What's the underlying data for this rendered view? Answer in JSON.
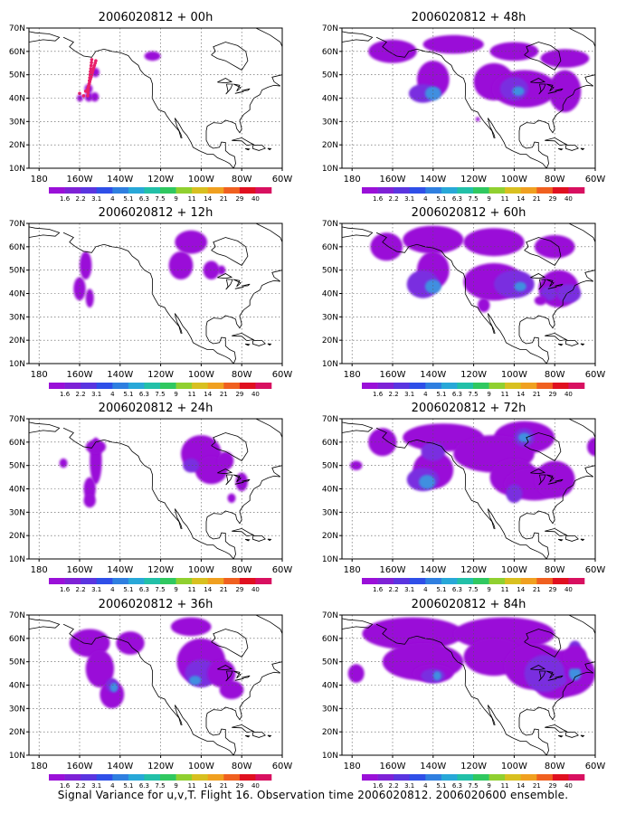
{
  "caption": "Signal Variance for u,v,T. Flight 16. Observation time 2006020812. 2006020600 ensemble.",
  "lat_labels": [
    "10N",
    "20N",
    "30N",
    "40N",
    "50N",
    "60N",
    "70N"
  ],
  "lon_labels": [
    "180",
    "160W",
    "140W",
    "120W",
    "100W",
    "80W",
    "60W"
  ],
  "legend_labels": [
    "1.6",
    "2.2",
    "3.1",
    "4",
    "5.1",
    "6.3",
    "7.5",
    "9",
    "11",
    "14",
    "21",
    "29",
    "40"
  ],
  "colors": {
    "scale": [
      "#9a10d8",
      "#7e22d6",
      "#5a35e0",
      "#2f4fe8",
      "#2f7fe0",
      "#28a8d8",
      "#22c0a8",
      "#30c860",
      "#90d030",
      "#d8c020",
      "#f0a020",
      "#f06020",
      "#e01020",
      "#d81060"
    ],
    "level_fill": [
      "#9a10d8",
      "#7a2ee0",
      "#3f8fe0",
      "#2ec0b8"
    ],
    "dot": "#e8206a"
  },
  "panels": [
    {
      "id": "p00",
      "title": "2006020812 + 00h",
      "blobs": [
        [
          -155.6,
          44,
          2,
          2,
          1
        ],
        [
          -152.2,
          51,
          2,
          2,
          1
        ],
        [
          -159.8,
          40,
          1.5,
          1.5,
          1
        ],
        [
          -155.5,
          40.5,
          2,
          2,
          1
        ],
        [
          -152.5,
          40.5,
          2,
          2,
          1
        ],
        [
          -124,
          58,
          4,
          2,
          1
        ]
      ],
      "dots": true
    },
    {
      "id": "p48",
      "title": "2006020812 + 48h",
      "blobs": [
        [
          -160,
          60,
          12,
          5,
          1
        ],
        [
          -130,
          63,
          15,
          4,
          1
        ],
        [
          -100,
          60,
          12,
          4,
          1
        ],
        [
          -75,
          57,
          12,
          4,
          1
        ],
        [
          -140,
          48,
          8,
          8,
          1
        ],
        [
          -145,
          42,
          7,
          4,
          2
        ],
        [
          -140,
          42,
          4,
          3,
          3
        ],
        [
          -110,
          47,
          10,
          8,
          1
        ],
        [
          -95,
          44,
          16,
          8,
          1
        ],
        [
          -100,
          44,
          7,
          5,
          2
        ],
        [
          -98,
          43,
          3,
          2,
          3
        ],
        [
          -75,
          43,
          8,
          9,
          1
        ],
        [
          -118,
          31,
          1,
          1,
          1
        ]
      ]
    },
    {
      "id": "p12",
      "title": "2006020812 + 12h",
      "blobs": [
        [
          -157,
          52,
          3,
          6,
          1
        ],
        [
          -160,
          42,
          3,
          5,
          1
        ],
        [
          -155,
          38,
          2,
          4,
          1
        ],
        [
          -105,
          62,
          8,
          5,
          1
        ],
        [
          -110,
          52,
          6,
          6,
          1
        ],
        [
          -95,
          50,
          4,
          4,
          1
        ],
        [
          -90,
          50,
          2,
          2,
          1
        ]
      ]
    },
    {
      "id": "p60",
      "title": "2006020812 + 60h",
      "blobs": [
        [
          -163,
          60,
          8,
          6,
          1
        ],
        [
          -140,
          63,
          15,
          6,
          1
        ],
        [
          -110,
          62,
          15,
          6,
          1
        ],
        [
          -80,
          60,
          10,
          5,
          1
        ],
        [
          -140,
          50,
          8,
          8,
          1
        ],
        [
          -145,
          44,
          8,
          6,
          2
        ],
        [
          -140,
          43,
          4,
          3,
          3
        ],
        [
          -110,
          45,
          15,
          8,
          1
        ],
        [
          -100,
          44,
          10,
          6,
          2
        ],
        [
          -97,
          43,
          3,
          2,
          3
        ],
        [
          -78,
          42,
          10,
          8,
          1
        ],
        [
          -73,
          40,
          6,
          4,
          2
        ],
        [
          -83,
          40,
          4,
          3,
          2
        ],
        [
          -115,
          35,
          3,
          3,
          1
        ],
        [
          -87,
          37,
          3,
          2,
          1
        ]
      ]
    },
    {
      "id": "p24",
      "title": "2006020812 + 24h",
      "blobs": [
        [
          -168,
          51,
          2,
          2,
          1
        ],
        [
          -152,
          52,
          3,
          10,
          1
        ],
        [
          -155,
          40,
          3,
          5,
          1
        ],
        [
          -155,
          35,
          3,
          3,
          1
        ],
        [
          -152,
          58,
          5,
          3,
          1
        ],
        [
          -100,
          55,
          10,
          8,
          1
        ],
        [
          -95,
          48,
          8,
          6,
          1
        ],
        [
          -105,
          50,
          4,
          3,
          2
        ],
        [
          -88,
          52,
          4,
          4,
          1
        ],
        [
          -80,
          43,
          3,
          4,
          1
        ],
        [
          -85,
          36,
          2,
          2,
          1
        ]
      ]
    },
    {
      "id": "p72",
      "title": "2006020812 + 72h",
      "blobs": [
        [
          -165,
          60,
          7,
          6,
          1
        ],
        [
          -135,
          62,
          20,
          6,
          1
        ],
        [
          -95,
          62,
          15,
          7,
          1
        ],
        [
          -110,
          55,
          20,
          8,
          1
        ],
        [
          -140,
          48,
          10,
          8,
          1
        ],
        [
          -145,
          44,
          8,
          5,
          2
        ],
        [
          -143,
          43,
          4,
          3,
          3
        ],
        [
          -100,
          45,
          12,
          8,
          1
        ],
        [
          -90,
          42,
          15,
          7,
          1
        ],
        [
          -80,
          44,
          10,
          8,
          1
        ],
        [
          -95,
          62,
          5,
          4,
          2
        ],
        [
          -95,
          62,
          3,
          2,
          3
        ],
        [
          -100,
          38,
          4,
          4,
          2
        ],
        [
          -60,
          58,
          4,
          4,
          1
        ],
        [
          -140,
          56,
          6,
          4,
          2
        ],
        [
          -178,
          50,
          3,
          2,
          1
        ]
      ]
    },
    {
      "id": "p36",
      "title": "2006020812 + 36h",
      "blobs": [
        [
          -155,
          58,
          10,
          6,
          1
        ],
        [
          -150,
          47,
          7,
          8,
          1
        ],
        [
          -144,
          36,
          6,
          6,
          1
        ],
        [
          -144,
          40,
          3,
          3,
          2
        ],
        [
          -143,
          39,
          2,
          2,
          3
        ],
        [
          -135,
          58,
          7,
          5,
          1
        ],
        [
          -105,
          65,
          10,
          4,
          1
        ],
        [
          -100,
          50,
          12,
          10,
          1
        ],
        [
          -100,
          45,
          8,
          6,
          2
        ],
        [
          -103,
          42,
          3,
          2,
          3
        ],
        [
          -90,
          45,
          7,
          6,
          1
        ],
        [
          -85,
          38,
          6,
          4,
          1
        ]
      ]
    },
    {
      "id": "p84",
      "title": "2006020812 + 84h",
      "blobs": [
        [
          -150,
          62,
          25,
          7,
          1
        ],
        [
          -105,
          62,
          25,
          7,
          1
        ],
        [
          -145,
          50,
          20,
          8,
          1
        ],
        [
          -110,
          52,
          15,
          8,
          1
        ],
        [
          -90,
          48,
          15,
          10,
          1
        ],
        [
          -75,
          45,
          15,
          10,
          1
        ],
        [
          -80,
          40,
          10,
          6,
          1
        ],
        [
          -140,
          45,
          10,
          4,
          1
        ],
        [
          -140,
          44,
          6,
          3,
          2
        ],
        [
          -85,
          45,
          10,
          8,
          2
        ],
        [
          -80,
          42,
          6,
          3,
          2
        ],
        [
          -138,
          44,
          2,
          2,
          3
        ],
        [
          -70,
          45,
          3,
          3,
          3
        ],
        [
          -70,
          56,
          3,
          3,
          2
        ],
        [
          -70,
          52,
          6,
          5,
          1
        ],
        [
          -178,
          45,
          4,
          4,
          1
        ]
      ]
    }
  ]
}
